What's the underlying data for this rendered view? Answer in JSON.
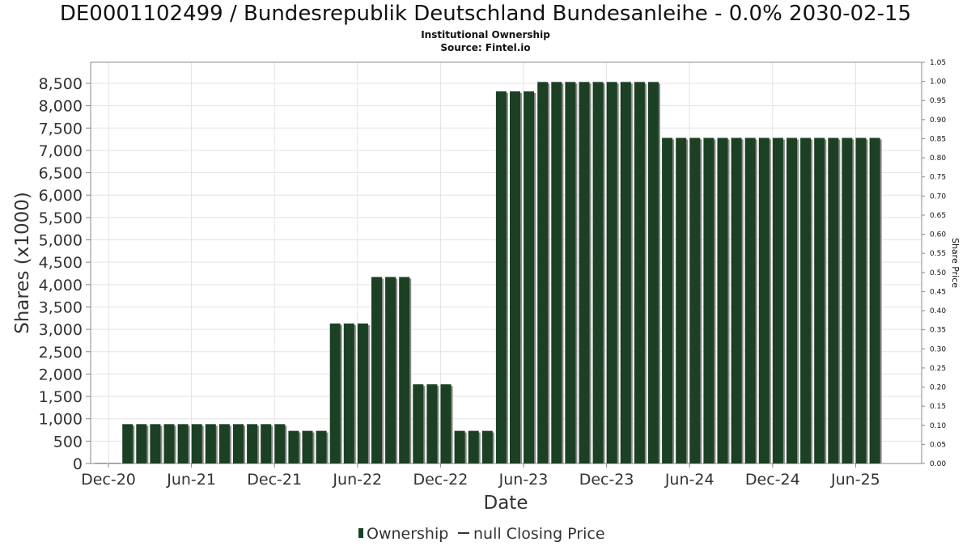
{
  "title": "DE0001102499 / Bundesrepublik Deutschland Bundesanleihe - 0.0% 2030-02-15",
  "subtitle1": "Institutional Ownership",
  "subtitle2": "Source: Fintel.io",
  "colors": {
    "bar": "#1b4023",
    "bar_shadow": "#8a8a8a",
    "grid": "#e3e3e3",
    "axis": "#888888",
    "text": "#333333"
  },
  "chart_data": {
    "type": "bar",
    "xlabel": "Date",
    "ylabel": "Shares (x1000)",
    "y2label": "Share Price",
    "ylim": [
      0,
      8900
    ],
    "y2lim": [
      0,
      1.05
    ],
    "yticks": [
      "0",
      "500",
      "1,000",
      "1,500",
      "2,000",
      "2,500",
      "3,000",
      "3,500",
      "4,000",
      "4,500",
      "5,000",
      "5,500",
      "6,000",
      "6,500",
      "7,000",
      "7,500",
      "8,000",
      "8,500"
    ],
    "y2ticks": [
      "0.00",
      "0.05",
      "0.10",
      "0.15",
      "0.20",
      "0.25",
      "0.30",
      "0.35",
      "0.40",
      "0.45",
      "0.50",
      "0.55",
      "0.60",
      "0.65",
      "0.70",
      "0.75",
      "0.80",
      "0.85",
      "0.90",
      "0.95",
      "1.00",
      "1.05"
    ],
    "xticks": [
      "Dec-20",
      "Jun-21",
      "Dec-21",
      "Jun-22",
      "Dec-22",
      "Jun-23",
      "Dec-23",
      "Jun-24",
      "Dec-24",
      "Jun-25"
    ],
    "grid": true,
    "legend_position": "bottom",
    "series": [
      {
        "name": "Ownership",
        "values": [
          0,
          0,
          880,
          880,
          880,
          880,
          880,
          880,
          880,
          880,
          880,
          880,
          880,
          880,
          730,
          730,
          730,
          3130,
          3130,
          3130,
          4170,
          4170,
          4170,
          1770,
          1770,
          1770,
          730,
          730,
          730,
          8320,
          8320,
          8320,
          8530,
          8530,
          8530,
          8530,
          8530,
          8530,
          8530,
          8530,
          8530,
          7280,
          7280,
          7280,
          7280,
          7280,
          7280,
          7280,
          7280,
          7280,
          7280,
          7280,
          7280,
          7280,
          7280,
          7280,
          7280
        ]
      }
    ],
    "legend": [
      {
        "name": "Ownership",
        "marker": "bar"
      },
      {
        "name": "null Closing Price",
        "marker": "line"
      }
    ]
  }
}
